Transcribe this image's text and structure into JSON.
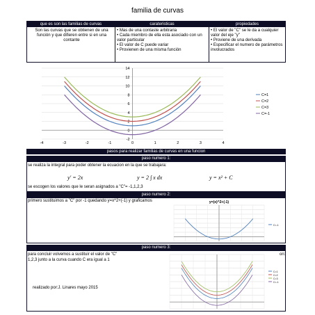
{
  "title": "familia de curvas",
  "table": {
    "headers": [
      "que es son las familias de curvas",
      "carateristicas",
      "propiedades"
    ],
    "col1_text": "Son las curvas que se obtienen de una función y que difieren entre si en una contante",
    "col2_items": [
      "• Mas de una contaste arbitraria",
      "• Cada miembro de ella esta asociado con un valor particular",
      "• El valor de C puede variar",
      "• Provienen de una misma función"
    ],
    "col3_items": [
      "• El valor de \"C\" se le da a cualquier valor del eje \"y\"",
      "• Proviene de una derivada",
      "• Especificar el numero de parámetros involucrados"
    ]
  },
  "chart_data": [
    {
      "type": "line",
      "title": "",
      "xlabel": "",
      "ylabel": "",
      "xlim": [
        -4,
        4
      ],
      "ylim": [
        -2,
        14
      ],
      "x_ticks": [
        -4,
        -3,
        -2,
        -1,
        0,
        1,
        2,
        3,
        4
      ],
      "y_ticks": [
        -2,
        0,
        2,
        4,
        6,
        8,
        10,
        12,
        14
      ],
      "grid": true,
      "legend": "right",
      "x": [
        -3,
        -2.5,
        -2,
        -1.5,
        -1,
        -0.5,
        0,
        0.5,
        1,
        1.5,
        2,
        2.5,
        3
      ],
      "series": [
        {
          "name": "C=1",
          "color": "#4f81bd",
          "values": [
            10,
            7.25,
            5,
            3.25,
            2,
            1.25,
            1,
            1.25,
            2,
            3.25,
            5,
            7.25,
            10
          ]
        },
        {
          "name": "C=2",
          "color": "#c0504d",
          "values": [
            11,
            8.25,
            6,
            4.25,
            3,
            2.25,
            2,
            2.25,
            3,
            4.25,
            6,
            8.25,
            11
          ]
        },
        {
          "name": "C=3",
          "color": "#9bbb59",
          "values": [
            12,
            9.25,
            7,
            5.25,
            4,
            3.25,
            3,
            3.25,
            4,
            5.25,
            7,
            9.25,
            12
          ]
        },
        {
          "name": "C=-1",
          "color": "#8064a2",
          "values": [
            8,
            5.25,
            3,
            1.25,
            0,
            -0.75,
            -1,
            -0.75,
            0,
            1.25,
            3,
            5.25,
            8
          ]
        }
      ]
    },
    {
      "type": "line",
      "title": "y=(x)^2+(-1)",
      "xlim": [
        -4,
        4
      ],
      "ylim": [
        -2,
        14
      ],
      "grid": true,
      "legend": "right",
      "x": [
        -3,
        -2.5,
        -2,
        -1.5,
        -1,
        -0.5,
        0,
        0.5,
        1,
        1.5,
        2,
        2.5,
        3
      ],
      "series": [
        {
          "name": "C=-1",
          "color": "#4f81bd",
          "values": [
            8,
            5.25,
            3,
            1.25,
            0,
            -0.75,
            -1,
            -0.75,
            0,
            1.25,
            3,
            5.25,
            8
          ]
        }
      ]
    },
    {
      "type": "line",
      "xlim": [
        -4,
        4
      ],
      "ylim": [
        -2,
        14
      ],
      "grid": true,
      "legend": "right",
      "x": [
        -3,
        -2.5,
        -2,
        -1.5,
        -1,
        -0.5,
        0,
        0.5,
        1,
        1.5,
        2,
        2.5,
        3
      ],
      "series": [
        {
          "name": "C=1",
          "color": "#4f81bd",
          "values": [
            10,
            7.25,
            5,
            3.25,
            2,
            1.25,
            1,
            1.25,
            2,
            3.25,
            5,
            7.25,
            10
          ]
        },
        {
          "name": "C=2",
          "color": "#c0504d",
          "values": [
            11,
            8.25,
            6,
            4.25,
            3,
            2.25,
            2,
            2.25,
            3,
            4.25,
            6,
            8.25,
            11
          ]
        },
        {
          "name": "C=3",
          "color": "#9bbb59",
          "values": [
            12,
            9.25,
            7,
            5.25,
            4,
            3.25,
            3,
            3.25,
            4,
            5.25,
            7,
            9.25,
            12
          ]
        },
        {
          "name": "C=-1",
          "color": "#8064a2",
          "values": [
            8,
            5.25,
            3,
            1.25,
            0,
            -0.75,
            -1,
            -0.75,
            0,
            1.25,
            3,
            5.25,
            8
          ]
        }
      ]
    }
  ],
  "steps": {
    "main_header": "pasos para realizar familias de curvas en una funcion",
    "step1_header": "paso numero 1:",
    "step1_text": "se realiza la integral para poder obtener la ecuacion en la que se trabajara:",
    "eq1": "y′ = 2x",
    "eq2": "y = 2 ∫ x dx",
    "eq3": "y = x² + C",
    "step1_text2": "se  escogen los valores que le seran asignados a \"C\"= -1,1,2,3",
    "step2_header": "paso numero 2:",
    "step2_text": "primero sustituimos a \"C\" por -1  quedando y=x^2+(-1) y graficamos",
    "step3_header": "paso numero 3:",
    "step3_text": "para concluir volvemos a sustituir el valor de \"C\"",
    "step3_tail": "on:",
    "step3_text2": "1,2,3 junto a la curva cuando C era igual a 1",
    "author": "realizado por:J. Linares mayo 2015"
  }
}
